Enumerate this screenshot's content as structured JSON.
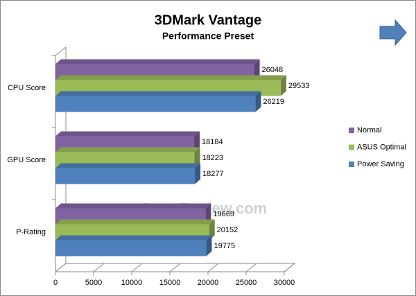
{
  "chart_data": {
    "type": "bar3d",
    "title": "3DMark Vantage",
    "subtitle": "Performance Preset",
    "watermark": "www.JagatReview.com",
    "categories": [
      "CPU Score",
      "GPU Score",
      "P-Rating"
    ],
    "series": [
      {
        "name": "Normal",
        "color": "#8064a2",
        "values": [
          26048,
          18184,
          19669
        ]
      },
      {
        "name": "ASUS Optimal",
        "color": "#9bbb59",
        "values": [
          29533,
          18223,
          20152
        ]
      },
      {
        "name": "Power Saving",
        "color": "#4f81bd",
        "values": [
          26219,
          18277,
          19775
        ]
      }
    ],
    "xlim": [
      0,
      30000
    ],
    "xticks": [
      0,
      5000,
      10000,
      15000,
      20000,
      25000,
      30000
    ],
    "legend": "right"
  }
}
